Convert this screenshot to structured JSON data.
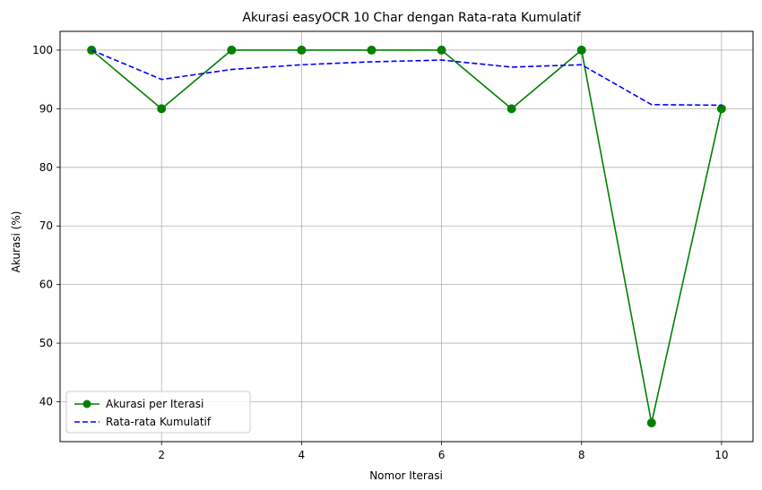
{
  "chart_data": {
    "type": "line",
    "title": "Akurasi easyOCR 10 Char dengan Rata-rata Kumulatif",
    "xlabel": "Nomor Iterasi",
    "ylabel": "Akurasi (%)",
    "x": [
      1,
      2,
      3,
      4,
      5,
      6,
      7,
      8,
      9,
      10
    ],
    "xlim": [
      0.55,
      10.45
    ],
    "ylim": [
      33.2,
      103.2
    ],
    "xticks": [
      2,
      4,
      6,
      8,
      10
    ],
    "yticks": [
      40,
      50,
      60,
      70,
      80,
      90,
      100
    ],
    "grid": true,
    "legend_position": "lower-left",
    "series": [
      {
        "name": "Akurasi per Iterasi",
        "values": [
          100,
          90,
          100,
          100,
          100,
          100,
          90,
          100,
          36.4,
          90
        ],
        "color": "#008000",
        "style": "solid",
        "marker": "circle"
      },
      {
        "name": "Rata-rata Kumulatif",
        "values": [
          100,
          95,
          96.7,
          97.5,
          98,
          98.3,
          97.1,
          97.5,
          90.7,
          90.6
        ],
        "color": "#0000ff",
        "style": "dashed",
        "marker": "none"
      }
    ]
  }
}
